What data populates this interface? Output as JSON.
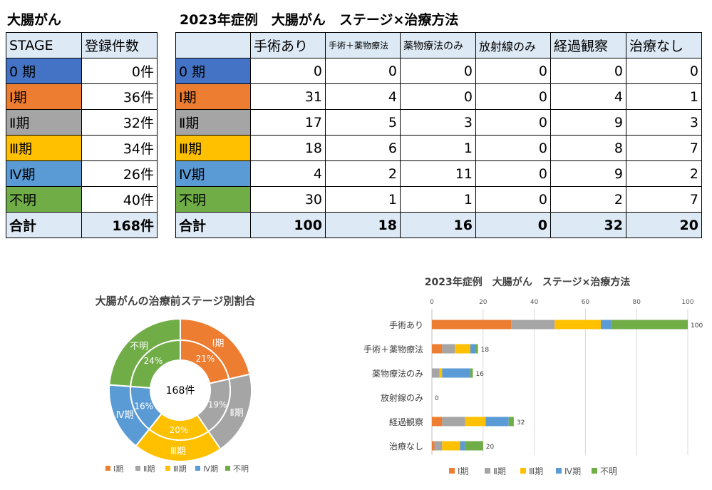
{
  "left_table": {
    "title": "大腸がん",
    "header": [
      "STAGE",
      "登録件数"
    ],
    "rows": [
      {
        "stage": "0 期",
        "count": "0件"
      },
      {
        "stage": "Ⅰ期",
        "count": "36件"
      },
      {
        "stage": "Ⅱ期",
        "count": "32件"
      },
      {
        "stage": "Ⅲ期",
        "count": "34件"
      },
      {
        "stage": "Ⅳ期",
        "count": "26件"
      },
      {
        "stage": "不明",
        "count": "40件"
      }
    ],
    "total": {
      "label": "合計",
      "count": "168件"
    }
  },
  "right_table": {
    "title": "2023年症例　大腸がん　ステージ×治療方法",
    "columns": [
      "手術あり",
      "手術＋薬物療法",
      "薬物療法のみ",
      "放射線のみ",
      "経過観察",
      "治療なし"
    ],
    "rows": [
      {
        "stage": "0 期",
        "values": [
          "0",
          "0",
          "0",
          "0",
          "0",
          "0"
        ]
      },
      {
        "stage": "Ⅰ期",
        "values": [
          "31",
          "4",
          "0",
          "0",
          "4",
          "1"
        ]
      },
      {
        "stage": "Ⅱ期",
        "values": [
          "17",
          "5",
          "3",
          "0",
          "9",
          "3"
        ]
      },
      {
        "stage": "Ⅲ期",
        "values": [
          "18",
          "6",
          "1",
          "0",
          "8",
          "7"
        ]
      },
      {
        "stage": "Ⅳ期",
        "values": [
          "4",
          "2",
          "11",
          "0",
          "9",
          "2"
        ]
      },
      {
        "stage": "不明",
        "values": [
          "30",
          "1",
          "1",
          "0",
          "2",
          "7"
        ]
      }
    ],
    "total": {
      "label": "合計",
      "values": [
        "100",
        "18",
        "16",
        "0",
        "32",
        "20"
      ]
    }
  },
  "colors": {
    "stage0": "#4472c4",
    "stage1": "#ed7d31",
    "stage2": "#a5a5a5",
    "stage3": "#ffc000",
    "stage4": "#5b9bd5",
    "unknown": "#70ad47",
    "header_bg": "#dde9f5"
  },
  "chart_data": [
    {
      "type": "pie",
      "title": "大腸がんの治療前ステージ別割合",
      "center_label": "168件",
      "slices": [
        {
          "label": "Ⅰ期",
          "value": 36,
          "percent": "21%"
        },
        {
          "label": "Ⅱ期",
          "value": 32,
          "percent": "19%"
        },
        {
          "label": "Ⅲ期",
          "value": 34,
          "percent": "20%"
        },
        {
          "label": "Ⅳ期",
          "value": 26,
          "percent": "16%"
        },
        {
          "label": "不明",
          "value": 40,
          "percent": "24%"
        }
      ],
      "legend": [
        "Ⅰ期",
        "Ⅱ期",
        "Ⅲ期",
        "Ⅳ期",
        "不明"
      ],
      "legend_position": "bottom"
    },
    {
      "type": "bar",
      "orientation": "horizontal",
      "stacked": true,
      "title": "2023年症例　大腸がん　ステージ×治療方法",
      "categories": [
        "手術あり",
        "手術＋薬物療法",
        "薬物療法のみ",
        "放射線のみ",
        "経過観察",
        "治療なし"
      ],
      "series": [
        {
          "name": "Ⅰ期",
          "values": [
            31,
            4,
            0,
            0,
            4,
            1
          ]
        },
        {
          "name": "Ⅱ期",
          "values": [
            17,
            5,
            3,
            0,
            9,
            3
          ]
        },
        {
          "name": "Ⅲ期",
          "values": [
            18,
            6,
            1,
            0,
            8,
            7
          ]
        },
        {
          "name": "Ⅳ期",
          "values": [
            4,
            2,
            11,
            0,
            9,
            2
          ]
        },
        {
          "name": "不明",
          "values": [
            30,
            1,
            1,
            0,
            2,
            7
          ]
        }
      ],
      "totals": [
        "100",
        "18",
        "16",
        "0",
        "32",
        "20"
      ],
      "x_ticks": [
        "0",
        "20",
        "40",
        "60",
        "80",
        "100"
      ],
      "xlim": [
        0,
        100
      ],
      "legend_position": "bottom"
    }
  ]
}
